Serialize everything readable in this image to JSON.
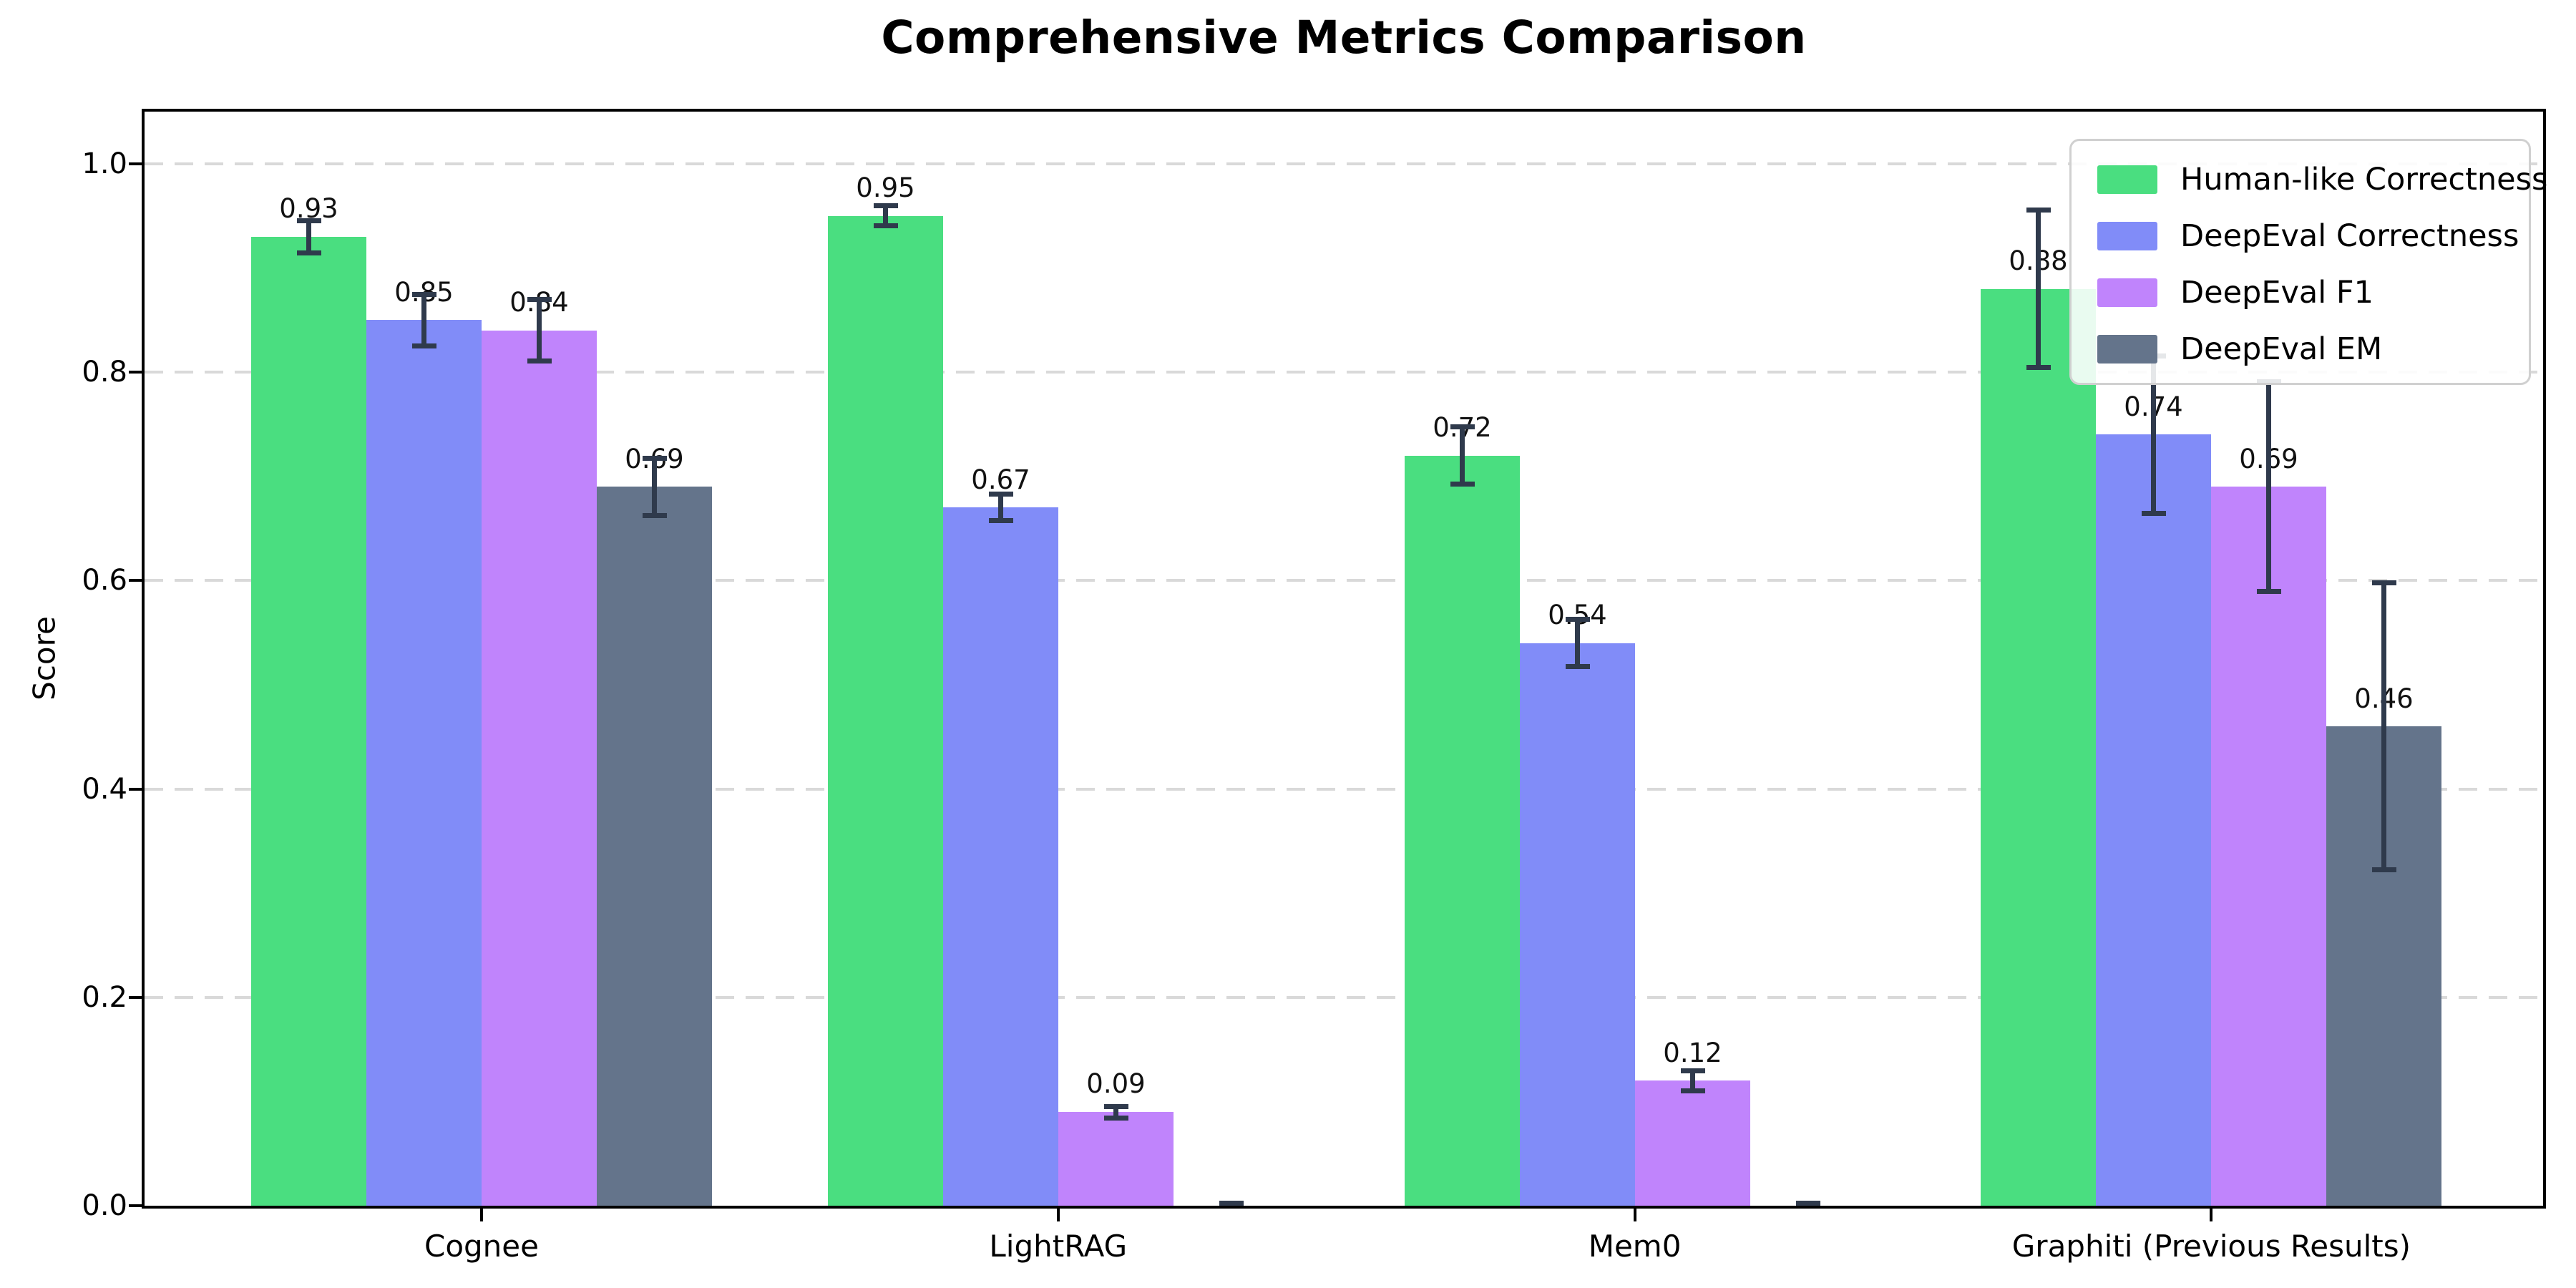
{
  "title": "Comprehensive Metrics Comparison",
  "chart_data": {
    "type": "bar",
    "title": "Comprehensive Metrics Comparison",
    "xlabel": "",
    "ylabel": "Score",
    "categories": [
      "Cognee",
      "LightRAG",
      "Mem0",
      "Graphiti (Previous Results)"
    ],
    "series": [
      {
        "name": "Human-like Correctness",
        "color": "#4ade80",
        "values": [
          0.93,
          0.95,
          0.72,
          0.88
        ],
        "errors": [
          0.018,
          0.012,
          0.03,
          0.078
        ],
        "labels": [
          "0.93",
          "0.95",
          "0.72",
          "0.88"
        ]
      },
      {
        "name": "DeepEval Correctness",
        "color": "#818cf8",
        "values": [
          0.85,
          0.67,
          0.54,
          0.74
        ],
        "errors": [
          0.027,
          0.015,
          0.025,
          0.078
        ],
        "labels": [
          "0.85",
          "0.67",
          "0.54",
          "0.74"
        ]
      },
      {
        "name": "DeepEval F1",
        "color": "#c084fc",
        "values": [
          0.84,
          0.09,
          0.12,
          0.69
        ],
        "errors": [
          0.032,
          0.008,
          0.012,
          0.103
        ],
        "labels": [
          "0.84",
          "0.09",
          "0.12",
          "0.69"
        ]
      },
      {
        "name": "DeepEval EM",
        "color": "#64748b",
        "values": [
          0.69,
          0.0,
          0.0,
          0.46
        ],
        "errors": [
          0.03,
          0.004,
          0.004,
          0.14
        ],
        "labels": [
          "0.69",
          "",
          "",
          "0.46"
        ]
      }
    ],
    "error_bar_color": "#2f3a4c",
    "gridline_color": "#d9d9d9",
    "grid": "dashed horizontal at 0.2 steps",
    "yticks": [
      "0.0",
      "0.2",
      "0.4",
      "0.6",
      "0.8",
      "1.0"
    ],
    "ylim": [
      0,
      1.05
    ],
    "bar_width_units": 0.2,
    "legend_position": "upper right"
  }
}
